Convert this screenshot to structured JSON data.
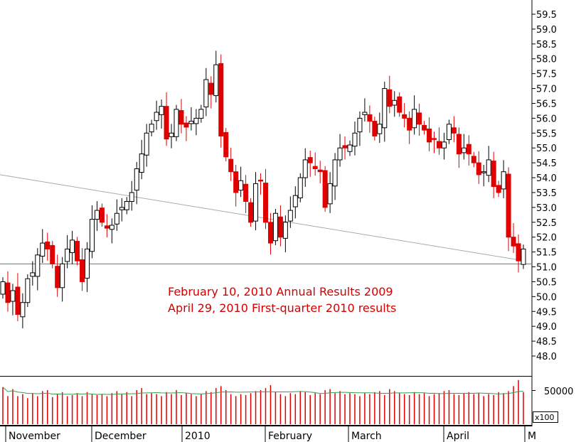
{
  "chart_data": {
    "type": "candlestick",
    "title": "",
    "price_axis": {
      "ylim": [
        47.6,
        59.9
      ],
      "ticks": [
        48.0,
        48.5,
        49.0,
        49.5,
        50.0,
        50.5,
        51.0,
        51.5,
        52.0,
        52.5,
        53.0,
        53.5,
        54.0,
        54.5,
        55.0,
        55.5,
        56.0,
        56.5,
        57.0,
        57.5,
        58.0,
        58.5,
        59.0,
        59.5
      ]
    },
    "months": [
      "November",
      "December",
      "2010",
      "February",
      "March",
      "April",
      "M"
    ],
    "annotations": [
      "February 10, 2010 Annual Results 2009",
      "April 29, 2010 First-quarter 2010 results"
    ],
    "horizontal_line": {
      "value": 51.1,
      "color": "#3c9a4e"
    },
    "trend_line": {
      "from": 54.1,
      "to": 51.2,
      "color": "#aaaaaa"
    },
    "volume_axis": {
      "label": "50000",
      "unit": "x100"
    },
    "colors": {
      "up": "#ffffff",
      "down": "#e00000",
      "outline": "#000000",
      "volume": "#e00000",
      "volume_avg": "#3c9a4e"
    },
    "closes": [
      50.5,
      49.8,
      50.2,
      49.4,
      49.8,
      50.6,
      50.8,
      51.4,
      51.8,
      51.6,
      51.1,
      50.3,
      51.1,
      51.6,
      51.9,
      51.2,
      50.5,
      51.6,
      52.6,
      52.9,
      52.5,
      52.3,
      52.4,
      52.8,
      53.0,
      53.2,
      53.5,
      54.3,
      54.8,
      55.5,
      55.8,
      56.2,
      56.4,
      55.3,
      55.5,
      56.3,
      55.8,
      55.7,
      55.9,
      56.0,
      56.3,
      57.3,
      56.8,
      57.8,
      55.4,
      54.7,
      54.2,
      53.5,
      53.9,
      53.2,
      52.5,
      53.8,
      53.9,
      52.5,
      51.8,
      52.8,
      52.0,
      52.5,
      52.9,
      53.4,
      54.0,
      54.6,
      54.5,
      54.3,
      54.2,
      53.0,
      53.8,
      54.6,
      55.0,
      55.0,
      55.1,
      55.5,
      56.0,
      56.2,
      55.9,
      55.4,
      55.8,
      57.0,
      56.4,
      56.6,
      56.2,
      56.0,
      55.6,
      56.3,
      55.8,
      55.6,
      55.2,
      55.3,
      55.0,
      55.2,
      55.8,
      55.5,
      54.8,
      55.0,
      54.8,
      54.5,
      54.1,
      54.2,
      54.6,
      53.7,
      53.5,
      54.2,
      52.0,
      51.7,
      51.2,
      51.6
    ],
    "volumes": [
      37,
      28,
      35,
      28,
      30,
      26,
      31,
      28,
      33,
      34,
      27,
      30,
      32,
      28,
      29,
      31,
      28,
      32,
      30,
      29,
      30,
      28,
      31,
      33,
      30,
      32,
      28,
      34,
      36,
      30,
      31,
      30,
      28,
      32,
      30,
      34,
      29,
      31,
      30,
      28,
      30,
      33,
      32,
      36,
      38,
      34,
      30,
      28,
      30,
      29,
      31,
      33,
      34,
      36,
      39,
      32,
      30,
      28,
      31,
      30,
      33,
      32,
      29,
      31,
      30,
      34,
      35,
      31,
      33,
      30,
      31,
      30,
      28,
      31,
      30,
      32,
      33,
      29,
      35,
      33,
      31,
      30,
      29,
      32,
      30,
      31,
      28,
      30,
      31,
      33,
      34,
      30,
      29,
      31,
      32,
      30,
      31,
      28,
      30,
      29,
      32,
      31,
      33,
      38,
      44,
      32
    ],
    "volume_ylim": [
      0,
      46
    ]
  }
}
